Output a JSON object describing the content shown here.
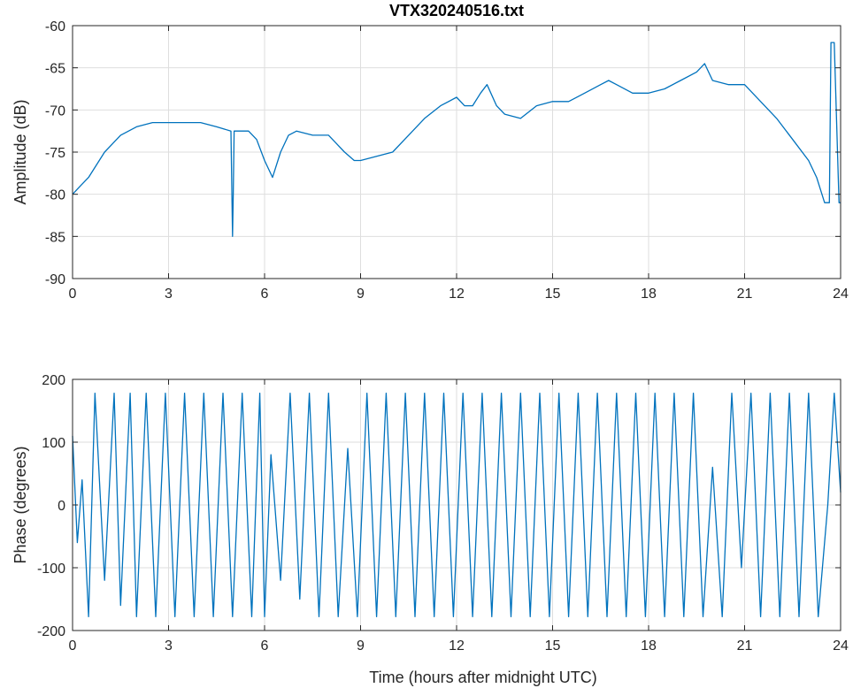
{
  "chart_data": [
    {
      "type": "line",
      "title": "VTX320240516.txt",
      "xlabel": "",
      "ylabel": "Amplitude (dB)",
      "xlim": [
        0,
        24
      ],
      "ylim": [
        -90,
        -60
      ],
      "xticks": [
        0,
        3,
        6,
        9,
        12,
        15,
        18,
        21,
        24
      ],
      "yticks": [
        -60,
        -65,
        -70,
        -75,
        -80,
        -85,
        -90
      ],
      "grid": true,
      "line_color": "#0072BD",
      "series": [
        {
          "x": [
            0,
            0.25,
            0.5,
            1,
            1.5,
            2,
            2.5,
            3,
            3.5,
            4,
            4.5,
            4.95,
            5.0,
            5.02,
            5.05,
            5.1,
            5.15,
            5.2,
            5.3,
            5.5,
            5.75,
            6.0,
            6.25,
            6.5,
            6.75,
            7.0,
            7.5,
            8.0,
            8.5,
            8.8,
            9.0,
            9.5,
            10,
            10.5,
            11,
            11.5,
            12,
            12.25,
            12.5,
            12.75,
            12.95,
            13.25,
            13.5,
            14,
            14.5,
            15,
            15.5,
            16,
            16.5,
            16.75,
            17,
            17.5,
            18,
            18.5,
            19,
            19.5,
            19.75,
            20,
            20.5,
            21,
            21.5,
            22,
            22.5,
            23,
            23.25,
            23.5,
            23.65,
            23.7,
            23.75,
            23.8,
            23.95,
            24.0
          ],
          "y": [
            -80,
            -79,
            -78,
            -75,
            -73,
            -72,
            -71.5,
            -71.5,
            -71.5,
            -71.5,
            -72,
            -72.5,
            -85,
            -80,
            -72.5,
            -72.5,
            -72.5,
            -72.5,
            -72.5,
            -72.5,
            -73.5,
            -76,
            -78,
            -75,
            -73,
            -72.5,
            -73,
            -73,
            -75,
            -76,
            -76,
            -75.5,
            -75,
            -73,
            -71,
            -69.5,
            -68.5,
            -69.5,
            -69.5,
            -68,
            -67,
            -69.5,
            -70.5,
            -71,
            -69.5,
            -69,
            -69,
            -68,
            -67,
            -66.5,
            -67,
            -68,
            -68,
            -67.5,
            -66.5,
            -65.5,
            -64.5,
            -66.5,
            -67,
            -67,
            -69,
            -71,
            -73.5,
            -76,
            -78,
            -81,
            -81,
            -62,
            -62,
            -62,
            -81,
            -81
          ]
        }
      ]
    },
    {
      "type": "line",
      "title": "",
      "xlabel": "Time (hours after midnight UTC)",
      "ylabel": "Phase (degrees)",
      "xlim": [
        0,
        24
      ],
      "ylim": [
        -200,
        200
      ],
      "xticks": [
        0,
        3,
        6,
        9,
        12,
        15,
        18,
        21,
        24
      ],
      "yticks": [
        200,
        100,
        0,
        -100,
        -200
      ],
      "grid": true,
      "line_color": "#0072BD",
      "series": [
        {
          "x": [
            0,
            0.15,
            0.3,
            0.5,
            0.7,
            1.0,
            1.3,
            1.5,
            1.8,
            2.0,
            2.3,
            2.6,
            2.9,
            3.2,
            3.5,
            3.8,
            4.1,
            4.4,
            4.7,
            5.0,
            5.3,
            5.6,
            5.85,
            6.0,
            6.2,
            6.5,
            6.8,
            7.1,
            7.4,
            7.7,
            8.0,
            8.3,
            8.6,
            8.9,
            9.2,
            9.5,
            9.8,
            10.1,
            10.4,
            10.7,
            11.0,
            11.3,
            11.6,
            11.9,
            12.2,
            12.5,
            12.8,
            13.1,
            13.4,
            13.7,
            14.0,
            14.3,
            14.6,
            14.9,
            15.2,
            15.5,
            15.8,
            16.1,
            16.4,
            16.7,
            17.0,
            17.3,
            17.6,
            17.9,
            18.2,
            18.5,
            18.8,
            19.1,
            19.4,
            19.7,
            20.0,
            20.3,
            20.6,
            20.9,
            21.2,
            21.5,
            21.8,
            22.1,
            22.4,
            22.7,
            23.0,
            23.3,
            23.6,
            23.8,
            24.0
          ],
          "y": [
            110,
            -60,
            40,
            -178,
            178,
            -120,
            178,
            -160,
            178,
            -178,
            178,
            -178,
            178,
            -178,
            178,
            -178,
            178,
            -178,
            178,
            -178,
            178,
            -178,
            178,
            -178,
            80,
            -120,
            178,
            -150,
            178,
            -178,
            178,
            -178,
            90,
            -178,
            178,
            -178,
            178,
            -178,
            178,
            -178,
            178,
            -178,
            178,
            -178,
            178,
            -178,
            178,
            -178,
            178,
            -178,
            178,
            -178,
            178,
            -178,
            178,
            -178,
            178,
            -178,
            178,
            -178,
            178,
            -178,
            178,
            -178,
            178,
            -178,
            178,
            -178,
            178,
            -178,
            60,
            -178,
            178,
            -100,
            178,
            -178,
            178,
            -178,
            178,
            -178,
            178,
            -178,
            0,
            178,
            20
          ]
        }
      ]
    }
  ]
}
